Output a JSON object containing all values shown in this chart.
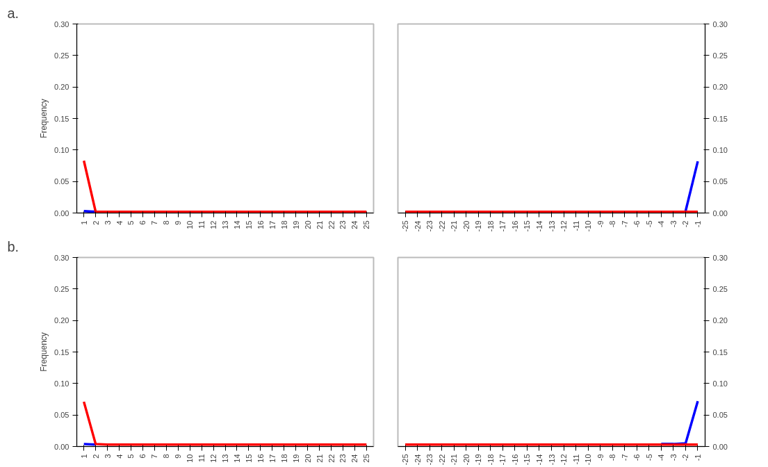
{
  "chart_data": [
    {
      "type": "line",
      "annotations": [
        "a."
      ],
      "ylabel": "Frequency",
      "grid": false,
      "categories": [
        "1",
        "2",
        "3",
        "4",
        "5",
        "6",
        "7",
        "8",
        "9",
        "10",
        "11",
        "12",
        "13",
        "14",
        "15",
        "16",
        "17",
        "18",
        "19",
        "20",
        "21",
        "22",
        "23",
        "24",
        "25"
      ],
      "ylim": [
        0,
        0.3
      ],
      "yticks": [
        {
          "value": 0,
          "label": "0.00"
        },
        {
          "value": 0.05,
          "label": "0.05"
        },
        {
          "value": 0.1,
          "label": "0.10"
        },
        {
          "value": 0.15,
          "label": "0.15"
        },
        {
          "value": 0.2,
          "label": "0.20"
        },
        {
          "value": 0.25,
          "label": "0.25"
        },
        {
          "value": 0.3,
          "label": "0.30"
        }
      ],
      "series": [
        {
          "color": "#0000ff",
          "values": [
            0.003,
            0.002,
            null,
            null,
            null,
            null,
            null,
            null,
            null,
            null,
            null,
            null,
            null,
            null,
            null,
            null,
            null,
            null,
            null,
            null,
            null,
            null,
            null,
            null,
            null
          ]
        },
        {
          "color": "#ff0000",
          "values": [
            0.083,
            0.002,
            0.002,
            0.002,
            0.002,
            0.002,
            0.002,
            0.002,
            0.002,
            0.002,
            0.002,
            0.002,
            0.002,
            0.002,
            0.002,
            0.002,
            0.002,
            0.002,
            0.002,
            0.002,
            0.002,
            0.002,
            0.002,
            0.002,
            0.002
          ]
        }
      ]
    },
    {
      "type": "line",
      "grid": false,
      "categories": [
        "-25",
        "-24",
        "-23",
        "-22",
        "-21",
        "-20",
        "-19",
        "-18",
        "-17",
        "-16",
        "-15",
        "-14",
        "-13",
        "-12",
        "-11",
        "-10",
        "-9",
        "-8",
        "-7",
        "-6",
        "-5",
        "-4",
        "-3",
        "-2",
        "-1"
      ],
      "y2lim": [
        0,
        0.3
      ],
      "y2ticks": [
        {
          "value": 0,
          "label": "0.00"
        },
        {
          "value": 0.05,
          "label": "0.05"
        },
        {
          "value": 0.1,
          "label": "0.10"
        },
        {
          "value": 0.15,
          "label": "0.15"
        },
        {
          "value": 0.2,
          "label": "0.20"
        },
        {
          "value": 0.25,
          "label": "0.25"
        },
        {
          "value": 0.3,
          "label": "0.30"
        }
      ],
      "series": [
        {
          "color": "#0000ff",
          "axis": "y2",
          "values": [
            null,
            null,
            null,
            null,
            null,
            null,
            null,
            null,
            null,
            null,
            null,
            null,
            null,
            null,
            null,
            null,
            null,
            null,
            null,
            null,
            null,
            null,
            null,
            0.003,
            0.082
          ]
        },
        {
          "color": "#ff0000",
          "axis": "y2",
          "values": [
            0.002,
            0.002,
            0.002,
            0.002,
            0.002,
            0.002,
            0.002,
            0.002,
            0.002,
            0.002,
            0.002,
            0.002,
            0.002,
            0.002,
            0.002,
            0.002,
            0.002,
            0.002,
            0.002,
            0.002,
            0.002,
            0.002,
            0.002,
            0.002,
            0.002
          ]
        }
      ]
    },
    {
      "type": "line",
      "annotations": [
        "b."
      ],
      "ylabel": "Frequency",
      "grid": false,
      "categories": [
        "1",
        "2",
        "3",
        "4",
        "5",
        "6",
        "7",
        "8",
        "9",
        "10",
        "11",
        "12",
        "13",
        "14",
        "15",
        "16",
        "17",
        "18",
        "19",
        "20",
        "21",
        "22",
        "23",
        "24",
        "25"
      ],
      "ylim": [
        0,
        0.3
      ],
      "yticks": [
        {
          "value": 0,
          "label": "0.00"
        },
        {
          "value": 0.05,
          "label": "0.05"
        },
        {
          "value": 0.1,
          "label": "0.10"
        },
        {
          "value": 0.15,
          "label": "0.15"
        },
        {
          "value": 0.2,
          "label": "0.20"
        },
        {
          "value": 0.25,
          "label": "0.25"
        },
        {
          "value": 0.3,
          "label": "0.30"
        }
      ],
      "series": [
        {
          "color": "#0000ff",
          "values": [
            0.004,
            0.003,
            null,
            null,
            null,
            null,
            null,
            null,
            null,
            null,
            null,
            null,
            null,
            null,
            null,
            null,
            null,
            null,
            null,
            null,
            null,
            null,
            null,
            null,
            null
          ]
        },
        {
          "color": "#ff0000",
          "values": [
            0.071,
            0.004,
            0.003,
            0.003,
            0.003,
            0.003,
            0.003,
            0.003,
            0.003,
            0.003,
            0.003,
            0.003,
            0.003,
            0.003,
            0.003,
            0.003,
            0.003,
            0.003,
            0.003,
            0.003,
            0.003,
            0.003,
            0.003,
            0.003,
            0.003
          ]
        }
      ]
    },
    {
      "type": "line",
      "grid": false,
      "categories": [
        "-25",
        "-24",
        "-23",
        "-22",
        "-21",
        "-20",
        "-19",
        "-18",
        "-17",
        "-16",
        "-15",
        "-14",
        "-13",
        "-12",
        "-11",
        "-10",
        "-9",
        "-8",
        "-7",
        "-6",
        "-5",
        "-4",
        "-3",
        "-2",
        "-1"
      ],
      "y2lim": [
        0,
        0.3
      ],
      "y2ticks": [
        {
          "value": 0,
          "label": "0.00"
        },
        {
          "value": 0.05,
          "label": "0.05"
        },
        {
          "value": 0.1,
          "label": "0.10"
        },
        {
          "value": 0.15,
          "label": "0.15"
        },
        {
          "value": 0.2,
          "label": "0.20"
        },
        {
          "value": 0.25,
          "label": "0.25"
        },
        {
          "value": 0.3,
          "label": "0.30"
        }
      ],
      "series": [
        {
          "color": "#0000ff",
          "axis": "y2",
          "values": [
            null,
            null,
            null,
            null,
            null,
            null,
            null,
            null,
            null,
            null,
            null,
            null,
            null,
            null,
            null,
            null,
            null,
            null,
            null,
            null,
            null,
            0.004,
            0.004,
            0.005,
            0.072
          ]
        },
        {
          "color": "#ff0000",
          "axis": "y2",
          "values": [
            0.003,
            0.003,
            0.003,
            0.003,
            0.003,
            0.003,
            0.003,
            0.003,
            0.003,
            0.003,
            0.003,
            0.003,
            0.003,
            0.003,
            0.003,
            0.003,
            0.003,
            0.003,
            0.003,
            0.003,
            0.003,
            0.003,
            0.003,
            0.003,
            0.003
          ]
        }
      ]
    }
  ]
}
